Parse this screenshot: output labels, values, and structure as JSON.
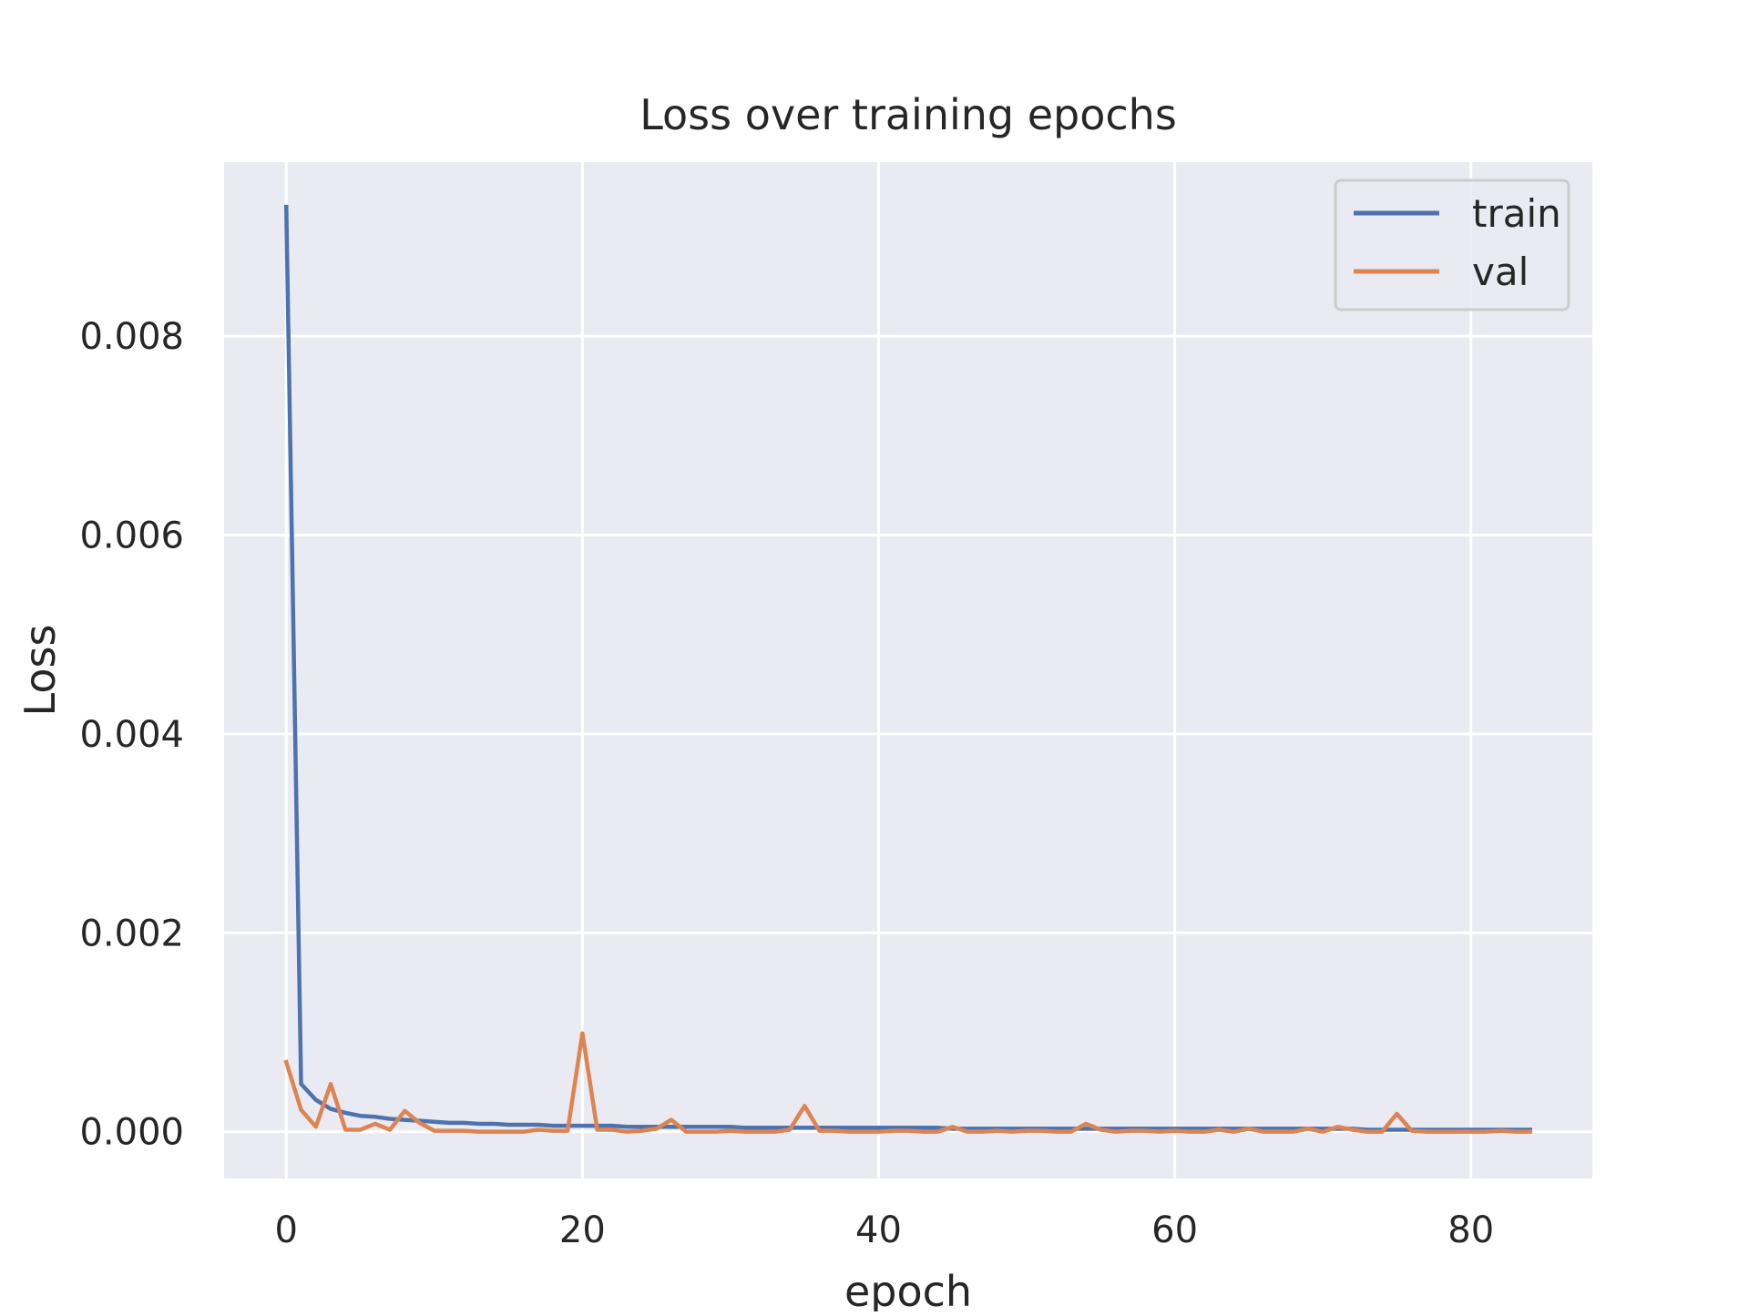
{
  "chart_data": {
    "type": "line",
    "title": "Loss over training epochs",
    "xlabel": "epoch",
    "ylabel": "Loss",
    "xlim": [
      -4.2,
      88.2
    ],
    "ylim": [
      -0.00047,
      0.00975
    ],
    "xticks": [
      0,
      20,
      40,
      60,
      80
    ],
    "yticks": [
      0.0,
      0.002,
      0.004,
      0.006,
      0.008
    ],
    "ytick_labels": [
      "0.000",
      "0.002",
      "0.004",
      "0.006",
      "0.008"
    ],
    "grid": true,
    "legend_position": "top-right",
    "background": "#eaeaf2",
    "series": [
      {
        "name": "train",
        "color": "#4c72b0",
        "values": [
          0.0093,
          0.00048,
          0.00032,
          0.00023,
          0.00019,
          0.00016,
          0.00015,
          0.00013,
          0.00012,
          0.00011,
          0.0001,
          9e-05,
          9e-05,
          8e-05,
          8e-05,
          7e-05,
          7e-05,
          7e-05,
          6e-05,
          6e-05,
          6e-05,
          6e-05,
          6e-05,
          5e-05,
          5e-05,
          5e-05,
          5e-05,
          5e-05,
          5e-05,
          5e-05,
          5e-05,
          4e-05,
          4e-05,
          4e-05,
          4e-05,
          4e-05,
          4e-05,
          4e-05,
          4e-05,
          4e-05,
          4e-05,
          4e-05,
          4e-05,
          4e-05,
          4e-05,
          3e-05,
          3e-05,
          3e-05,
          3e-05,
          3e-05,
          3e-05,
          3e-05,
          3e-05,
          3e-05,
          3e-05,
          3e-05,
          3e-05,
          3e-05,
          3e-05,
          3e-05,
          3e-05,
          3e-05,
          3e-05,
          3e-05,
          3e-05,
          3e-05,
          3e-05,
          3e-05,
          3e-05,
          3e-05,
          3e-05,
          3e-05,
          3e-05,
          2e-05,
          2e-05,
          2e-05,
          2e-05,
          2e-05,
          2e-05,
          2e-05,
          2e-05,
          2e-05,
          2e-05,
          2e-05,
          2e-05
        ]
      },
      {
        "name": "val",
        "color": "#dd8452",
        "values": [
          0.0007,
          0.00022,
          5e-05,
          0.00048,
          2e-05,
          2e-05,
          8e-05,
          2e-05,
          0.00021,
          9e-05,
          1e-05,
          1e-05,
          1e-05,
          0.0,
          0.0,
          0.0,
          0.0,
          2e-05,
          1e-05,
          1e-05,
          0.00099,
          2e-05,
          2e-05,
          0.0,
          1e-05,
          3e-05,
          0.00012,
          0.0,
          0.0,
          0.0,
          1e-05,
          0.0,
          0.0,
          0.0,
          2e-05,
          0.00026,
          1e-05,
          1e-05,
          0.0,
          0.0,
          0.0,
          1e-05,
          1e-05,
          0.0,
          0.0,
          5e-05,
          0.0,
          0.0,
          1e-05,
          0.0,
          1e-05,
          1e-05,
          0.0,
          0.0,
          8e-05,
          2e-05,
          0.0,
          1e-05,
          1e-05,
          0.0,
          1e-05,
          0.0,
          0.0,
          2e-05,
          0.0,
          3e-05,
          0.0,
          0.0,
          0.0,
          3e-05,
          0.0,
          5e-05,
          2e-05,
          0.0,
          0.0,
          0.00018,
          1e-05,
          0.0,
          0.0,
          0.0,
          0.0,
          0.0,
          1e-05,
          0.0,
          0.0
        ]
      }
    ]
  }
}
